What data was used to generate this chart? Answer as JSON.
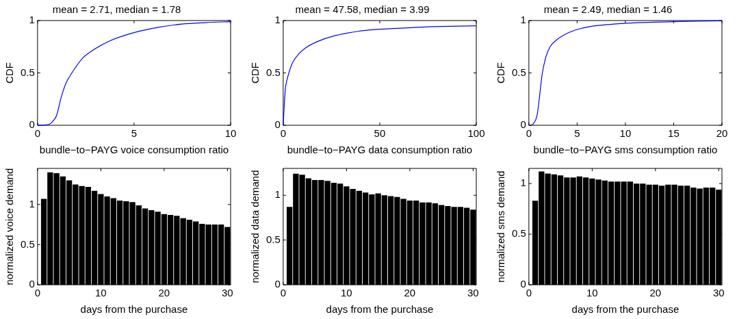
{
  "chart_data": [
    {
      "type": "line",
      "title": "mean = 2.71, median = 1.78",
      "xlabel": "bundle−to−PAYG voice consumption ratio",
      "ylabel": "CDF",
      "color": "#0000ff",
      "x": [
        0,
        0.55,
        0.8,
        0.98,
        1.23,
        1.47,
        1.78,
        2.33,
        2.94,
        3.8,
        5.03,
        6.26,
        7.48,
        8.7,
        10
      ],
      "values": [
        0,
        0.006,
        0.04,
        0.09,
        0.27,
        0.4,
        0.5,
        0.64,
        0.725,
        0.81,
        0.886,
        0.936,
        0.966,
        0.98,
        0.99
      ],
      "xlim": [
        0,
        10
      ],
      "xticks": [
        0,
        5,
        10
      ],
      "ylim": [
        0,
        1
      ],
      "yticks": [
        0,
        0.5,
        1
      ]
    },
    {
      "type": "line",
      "title": "mean = 47.58, median = 3.99",
      "xlabel": "bundle−to−PAYG data consumption ratio",
      "ylabel": "CDF",
      "color": "#0000ff",
      "x": [
        0,
        0.6,
        1.2,
        1.8,
        3.1,
        4.9,
        8,
        11.7,
        17.8,
        26.4,
        38.7,
        51,
        63,
        75.5,
        100
      ],
      "values": [
        0,
        0.21,
        0.36,
        0.42,
        0.51,
        0.6,
        0.68,
        0.74,
        0.8,
        0.854,
        0.897,
        0.918,
        0.929,
        0.94,
        0.95
      ],
      "xlim": [
        0,
        100
      ],
      "xticks": [
        0,
        50,
        100
      ],
      "ylim": [
        0,
        1
      ],
      "yticks": [
        0,
        0.5,
        1
      ]
    },
    {
      "type": "line",
      "title": "mean = 2.49, median = 1.46",
      "xlabel": "bundle−to−PAYG sms consumption ratio",
      "ylabel": "CDF",
      "color": "#0000ff",
      "x": [
        0,
        0.3,
        0.49,
        0.86,
        1.1,
        1.35,
        1.72,
        2.2,
        2.94,
        3.93,
        5.15,
        6.4,
        8.8,
        11.3,
        15,
        20
      ],
      "values": [
        0,
        0.003,
        0.017,
        0.1,
        0.27,
        0.47,
        0.64,
        0.75,
        0.82,
        0.876,
        0.918,
        0.944,
        0.966,
        0.979,
        0.99,
        0.998
      ],
      "xlim": [
        0,
        20
      ],
      "xticks": [
        0,
        5,
        10,
        15,
        20
      ],
      "ylim": [
        0,
        1
      ],
      "yticks": [
        0,
        0.5,
        1
      ]
    },
    {
      "type": "bar",
      "xlabel": "days from the purchase",
      "ylabel": "normalized voice demand",
      "color": "#000000",
      "x": [
        1,
        2,
        3,
        4,
        5,
        6,
        7,
        8,
        9,
        10,
        11,
        12,
        13,
        14,
        15,
        16,
        17,
        18,
        19,
        20,
        21,
        22,
        23,
        24,
        25,
        26,
        27,
        28,
        29,
        30
      ],
      "values": [
        1.07,
        1.4,
        1.39,
        1.35,
        1.3,
        1.25,
        1.23,
        1.22,
        1.17,
        1.13,
        1.1,
        1.08,
        1.05,
        1.04,
        1.03,
        0.99,
        0.95,
        0.93,
        0.91,
        0.88,
        0.87,
        0.86,
        0.83,
        0.81,
        0.79,
        0.76,
        0.75,
        0.75,
        0.75,
        0.72
      ],
      "xlim": [
        0,
        30.5
      ],
      "xticks": [
        0,
        10,
        20,
        30
      ],
      "ylim": [
        0,
        1.45
      ],
      "yticks": [
        0,
        0.5,
        1
      ]
    },
    {
      "type": "bar",
      "xlabel": "days from the purchase",
      "ylabel": "normalized data demand",
      "color": "#000000",
      "x": [
        1,
        2,
        3,
        4,
        5,
        6,
        7,
        8,
        9,
        10,
        11,
        12,
        13,
        14,
        15,
        16,
        17,
        18,
        19,
        20,
        21,
        22,
        23,
        24,
        25,
        26,
        27,
        28,
        29,
        30
      ],
      "values": [
        0.87,
        1.24,
        1.23,
        1.19,
        1.17,
        1.17,
        1.16,
        1.14,
        1.13,
        1.1,
        1.07,
        1.05,
        1.03,
        1.01,
        1.02,
        1.0,
        0.99,
        0.98,
        0.96,
        0.94,
        0.94,
        0.92,
        0.92,
        0.91,
        0.89,
        0.88,
        0.87,
        0.87,
        0.86,
        0.84
      ],
      "xlim": [
        0,
        30.5
      ],
      "xticks": [
        0,
        10,
        20,
        30
      ],
      "ylim": [
        0,
        1.3
      ],
      "yticks": [
        0,
        0.5,
        1
      ]
    },
    {
      "type": "bar",
      "xlabel": "days from the purchase",
      "ylabel": "normalized sms demand",
      "color": "#000000",
      "x": [
        1,
        2,
        3,
        4,
        5,
        6,
        7,
        8,
        9,
        10,
        11,
        12,
        13,
        14,
        15,
        16,
        17,
        18,
        19,
        20,
        21,
        22,
        23,
        24,
        25,
        26,
        27,
        28,
        29,
        30
      ],
      "values": [
        0.83,
        1.12,
        1.1,
        1.09,
        1.08,
        1.06,
        1.06,
        1.07,
        1.06,
        1.05,
        1.04,
        1.03,
        1.02,
        1.02,
        1.02,
        1.02,
        1.0,
        1.0,
        0.99,
        0.99,
        0.98,
        0.99,
        0.99,
        0.98,
        0.98,
        0.96,
        0.95,
        0.96,
        0.96,
        0.94
      ],
      "xlim": [
        0,
        30.5
      ],
      "xticks": [
        0,
        10,
        20,
        30
      ],
      "ylim": [
        0,
        1.15
      ],
      "yticks": [
        0,
        0.5,
        1
      ]
    }
  ]
}
